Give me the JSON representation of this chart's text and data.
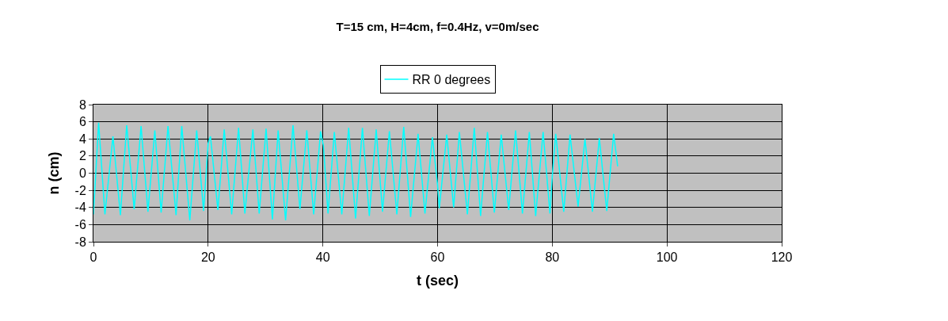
{
  "chart_data": {
    "type": "line",
    "title": "T=15 cm, H=4cm, f=0.4Hz, v=0m/sec",
    "xlabel": "t (sec)",
    "ylabel": "n (cm)",
    "series": [
      {
        "name": "RR 0 degrees",
        "color": "#00ffff",
        "x": [
          0,
          0.9,
          2.0,
          3.4,
          4.7,
          5.8,
          7.1,
          8.3,
          9.5,
          10.7,
          11.8,
          13.0,
          14.4,
          15.4,
          16.8,
          18.0,
          19.2,
          20.0,
          20.4,
          21.7,
          22.8,
          24.1,
          25.3,
          26.4,
          27.8,
          28.9,
          30.1,
          31.2,
          32.2,
          33.5,
          34.8,
          36.0,
          37.2,
          38.4,
          39.6,
          40.1,
          40.9,
          42.0,
          43.3,
          44.5,
          45.7,
          46.9,
          48.1,
          49.3,
          50.4,
          51.6,
          52.9,
          54.1,
          55.3,
          56.6,
          57.8,
          59.1,
          60.0,
          60.3,
          61.6,
          62.8,
          63.8,
          65.2,
          66.4,
          67.5,
          68.7,
          69.9,
          71.1,
          72.4,
          73.6,
          74.8,
          76.0,
          77.1,
          78.4,
          79.6,
          80.0,
          80.6,
          82.0,
          83.1,
          84.5,
          85.7,
          87.0,
          88.2,
          89.5,
          90.7,
          91.4
        ],
        "values": [
          -4.8,
          5.9,
          -4.8,
          4.3,
          -4.9,
          5.6,
          -4.2,
          5.5,
          -4.5,
          5.0,
          -4.6,
          5.5,
          -4.9,
          5.5,
          -5.5,
          5.0,
          -4.4,
          3.5,
          4.3,
          -4.3,
          5.1,
          -4.8,
          5.3,
          -4.7,
          5.1,
          -4.7,
          5.2,
          -5.4,
          5.0,
          -5.5,
          5.6,
          -4.2,
          5.0,
          -4.8,
          4.9,
          3.2,
          -4.7,
          4.8,
          -4.8,
          5.3,
          -5.3,
          5.3,
          -5.0,
          5.1,
          -4.5,
          4.9,
          -4.8,
          5.4,
          -5.1,
          4.6,
          -4.7,
          4.2,
          -1.4,
          -4.1,
          4.5,
          -4.0,
          4.8,
          -4.8,
          5.3,
          -5.0,
          4.8,
          -4.6,
          4.5,
          -4.3,
          5.0,
          -4.7,
          4.8,
          -5.0,
          4.8,
          -4.7,
          -0.4,
          4.6,
          -4.5,
          4.5,
          -3.9,
          4.0,
          -4.5,
          4.1,
          -4.4,
          4.6,
          0.8
        ]
      }
    ],
    "xlim": [
      0,
      120
    ],
    "xticks": [
      0,
      20,
      40,
      60,
      80,
      100,
      120
    ],
    "ylim": [
      -8,
      8
    ],
    "yticks": [
      -8,
      -6,
      -4,
      -2,
      0,
      2,
      4,
      6,
      8
    ],
    "grid": true,
    "legend": "top",
    "marker": "none",
    "line_style": "solid"
  }
}
